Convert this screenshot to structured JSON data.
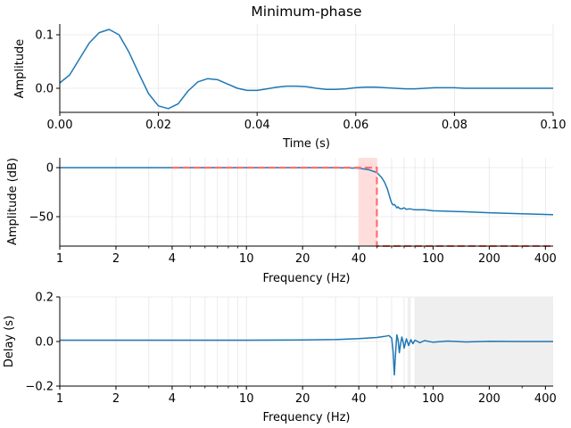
{
  "chart_data": [
    {
      "type": "line",
      "title": "Minimum-phase",
      "xlabel": "Time (s)",
      "ylabel": "Amplitude",
      "xlim": [
        0.0,
        0.1
      ],
      "ylim": [
        -0.045,
        0.12
      ],
      "xscale": "linear",
      "grid": true,
      "xticks": [
        0.0,
        0.02,
        0.04,
        0.06,
        0.08,
        0.1
      ],
      "xtick_labels": [
        "0.00",
        "0.02",
        "0.04",
        "0.06",
        "0.08",
        "0.10"
      ],
      "yticks": [
        0.0,
        0.1
      ],
      "ytick_labels": [
        "0.0",
        "0.1"
      ],
      "color": "#1f77b4",
      "series": [
        {
          "x": [
            0.0,
            0.002,
            0.004,
            0.006,
            0.008,
            0.01,
            0.012,
            0.014,
            0.016,
            0.018,
            0.02,
            0.022,
            0.024,
            0.026,
            0.028,
            0.03,
            0.032,
            0.034,
            0.036,
            0.038,
            0.04,
            0.042,
            0.044,
            0.046,
            0.048,
            0.05,
            0.052,
            0.054,
            0.056,
            0.058,
            0.06,
            0.062,
            0.064,
            0.066,
            0.068,
            0.07,
            0.072,
            0.074,
            0.076,
            0.078,
            0.08,
            0.082,
            0.084,
            0.086,
            0.088,
            0.09,
            0.092,
            0.094,
            0.096,
            0.098,
            0.1
          ],
          "y": [
            0.01,
            0.025,
            0.055,
            0.085,
            0.104,
            0.11,
            0.1,
            0.068,
            0.028,
            -0.01,
            -0.033,
            -0.038,
            -0.029,
            -0.005,
            0.012,
            0.018,
            0.016,
            0.008,
            0.0,
            -0.004,
            -0.004,
            -0.001,
            0.002,
            0.004,
            0.004,
            0.003,
            0.0,
            -0.002,
            -0.002,
            -0.001,
            0.001,
            0.002,
            0.002,
            0.001,
            0.0,
            -0.001,
            -0.001,
            0.0,
            0.001,
            0.001,
            0.001,
            0.0,
            0.0,
            0.0,
            0.0,
            0.0,
            0.0,
            0.0,
            0.0,
            0.0,
            0.0
          ]
        }
      ]
    },
    {
      "type": "line",
      "xlabel": "Frequency (Hz)",
      "ylabel": "Amplitude (dB)",
      "xlim": [
        1,
        440
      ],
      "ylim": [
        -80,
        10
      ],
      "xscale": "log",
      "grid": true,
      "xticks": [
        1,
        2,
        4,
        10,
        20,
        40,
        100,
        200,
        400
      ],
      "xtick_labels": [
        "1",
        "2",
        "4",
        "10",
        "20",
        "40",
        "100",
        "200",
        "400"
      ],
      "yticks": [
        0,
        -50
      ],
      "ytick_labels": [
        "0",
        "−50"
      ],
      "shaded_band": {
        "x": [
          40,
          50
        ],
        "color": "#ffdddd"
      },
      "series": [
        {
          "role": "response",
          "color": "#1f77b4",
          "x": [
            1,
            10,
            30,
            40,
            45,
            50,
            53,
            55,
            57,
            58,
            59,
            60,
            61,
            62,
            63,
            64,
            65,
            66,
            68,
            70,
            72,
            75,
            80,
            90,
            100,
            150,
            200,
            300,
            440
          ],
          "y": [
            0,
            0,
            0,
            -0.5,
            -2,
            -5,
            -10,
            -15,
            -22,
            -27,
            -32,
            -36,
            -38,
            -37.5,
            -39,
            -41,
            -40,
            -41.5,
            -42,
            -41,
            -42.5,
            -42,
            -43,
            -43,
            -44,
            -45,
            -46,
            -47,
            -48
          ]
        },
        {
          "role": "ideal-desired",
          "color": "#ff6f6f",
          "dashes": true,
          "x": [
            4,
            40,
            50,
            50,
            60,
            440
          ],
          "y": [
            0,
            0,
            0,
            -80,
            -80,
            -80
          ]
        }
      ]
    },
    {
      "type": "line",
      "xlabel": "Frequency (Hz)",
      "ylabel": "Delay (s)",
      "xlim": [
        1,
        440
      ],
      "ylim": [
        -0.2,
        0.2
      ],
      "xscale": "log",
      "grid": true,
      "xticks": [
        1,
        2,
        4,
        10,
        20,
        40,
        100,
        200,
        400
      ],
      "xtick_labels": [
        "1",
        "2",
        "4",
        "10",
        "20",
        "40",
        "100",
        "200",
        "400"
      ],
      "yticks": [
        0.2,
        0.0,
        -0.2
      ],
      "ytick_labels": [
        "0.2",
        "0.0",
        "−0.2"
      ],
      "shaded_bands": [
        {
          "x": [
            73,
            76
          ]
        },
        {
          "x": [
            80,
            440
          ]
        }
      ],
      "series": [
        {
          "color": "#1f77b4",
          "x": [
            1,
            10,
            20,
            30,
            40,
            50,
            55,
            58,
            60,
            61,
            62,
            63,
            64,
            65,
            66,
            67,
            68,
            69,
            70,
            72,
            74,
            76,
            78,
            80,
            85,
            90,
            100,
            120,
            150,
            200,
            300,
            440
          ],
          "y": [
            0.006,
            0.006,
            0.007,
            0.009,
            0.013,
            0.018,
            0.023,
            0.027,
            0.015,
            -0.04,
            -0.15,
            -0.05,
            0.03,
            0.005,
            -0.05,
            -0.01,
            0.02,
            0.0,
            -0.03,
            0.012,
            -0.018,
            0.008,
            -0.01,
            0.006,
            -0.005,
            0.004,
            -0.003,
            0.002,
            -0.002,
            0.001,
            0.0,
            0.0
          ]
        }
      ]
    }
  ]
}
